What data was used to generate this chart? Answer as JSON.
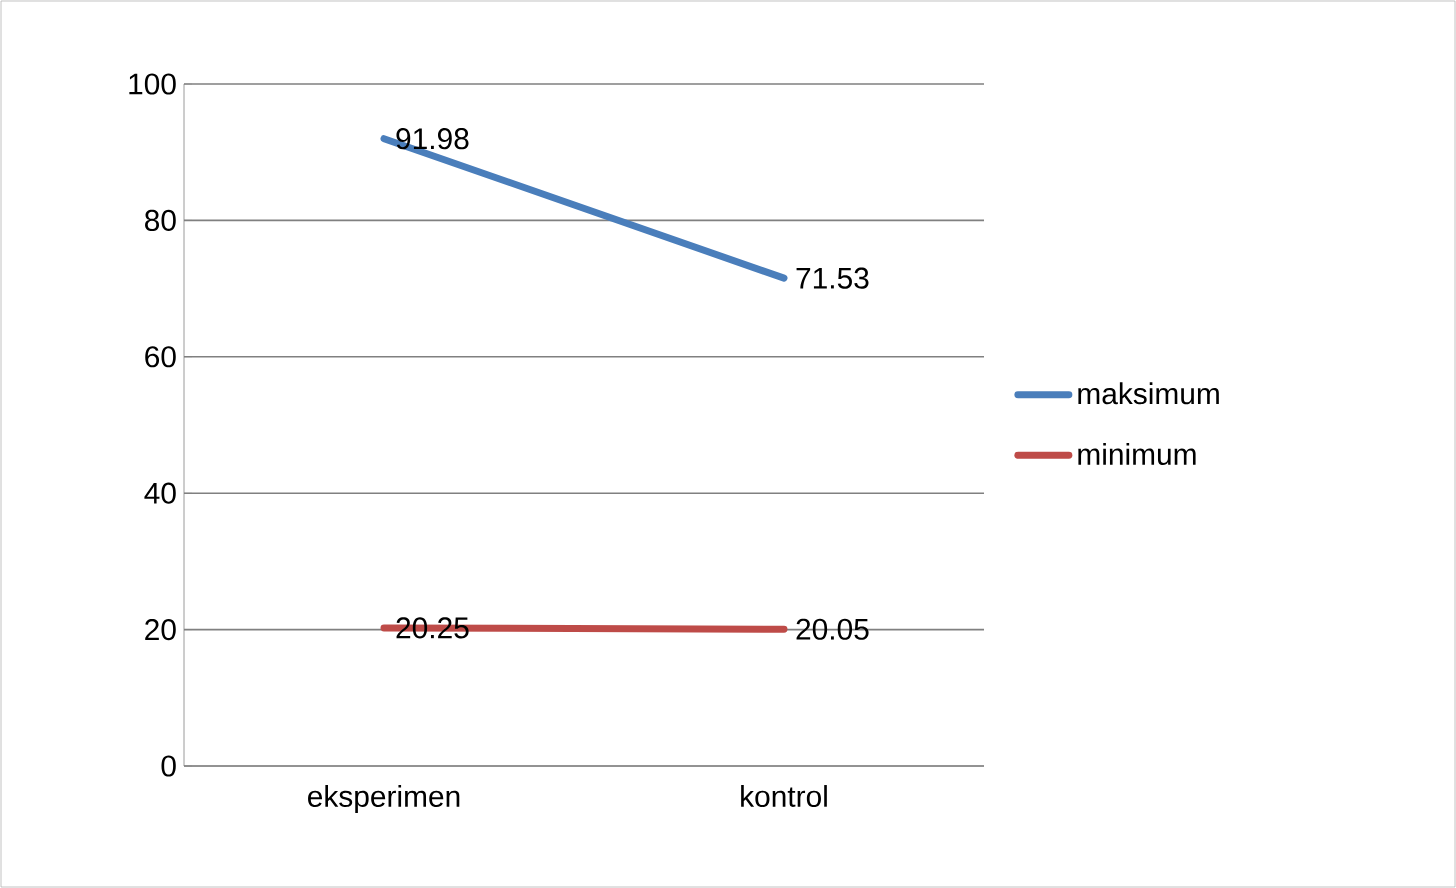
{
  "chart_data": {
    "type": "line",
    "categories": [
      "eksperimen",
      "kontrol"
    ],
    "series": [
      {
        "name": "maksimum",
        "color": "#4a7ebb",
        "values": [
          91.98,
          71.53
        ]
      },
      {
        "name": "minimum",
        "color": "#be4b48",
        "values": [
          20.25,
          20.05
        ]
      }
    ],
    "ylim": [
      0,
      100
    ],
    "yticks": [
      0,
      20,
      40,
      60,
      80,
      100
    ],
    "grid": "y",
    "legend": "right",
    "data_labels": true,
    "marker": "none",
    "line_style": "solid"
  }
}
